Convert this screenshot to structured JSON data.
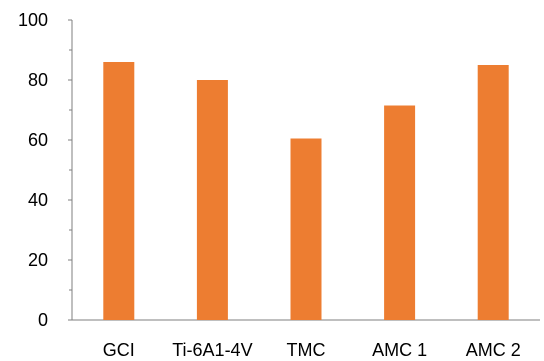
{
  "chart_data": {
    "type": "bar",
    "categories": [
      "GCI",
      "Ti-6A1-4V",
      "TMC",
      "AMC 1",
      "AMC 2"
    ],
    "values": [
      86,
      80,
      60.5,
      71.5,
      85
    ],
    "yticks": [
      0,
      20,
      40,
      60,
      80,
      100
    ],
    "ylim": [
      0,
      100
    ],
    "grid": false,
    "legend": "none",
    "bar_color": "#ED7D31",
    "axis_color": "#7F7F7F"
  }
}
